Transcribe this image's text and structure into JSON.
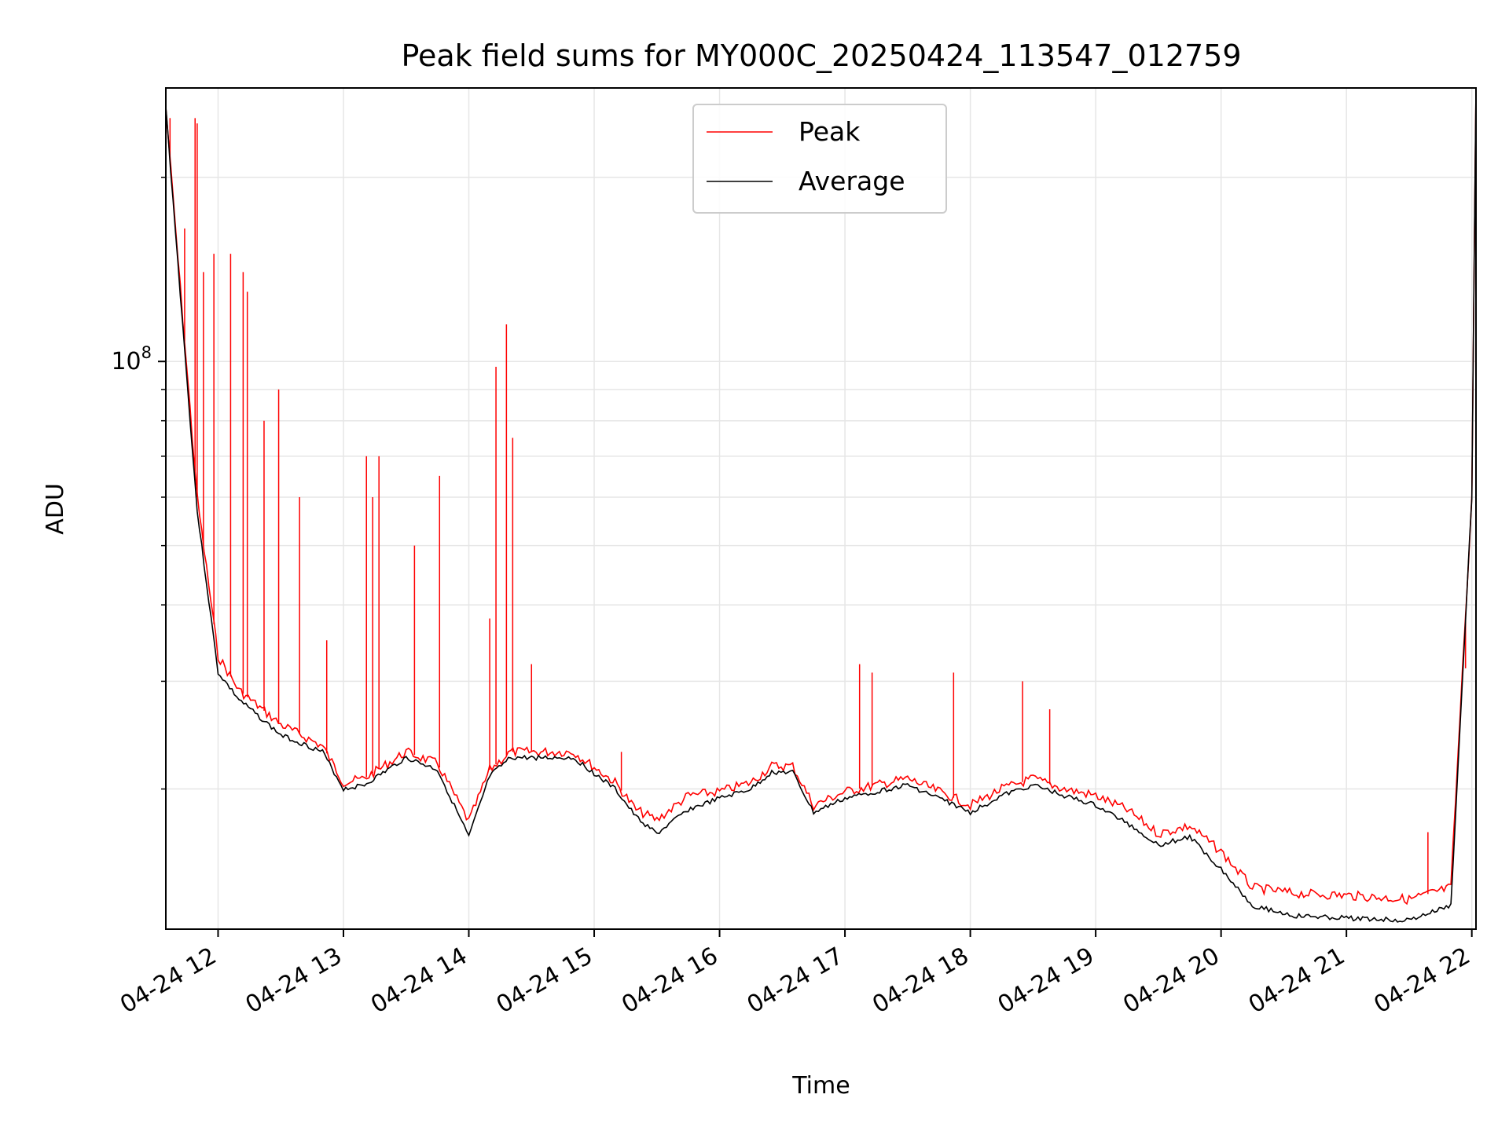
{
  "chart_data": {
    "type": "line",
    "title": "Peak field sums for MY000C_20250424_113547_012759",
    "xlabel": "Time",
    "ylabel": "ADU",
    "xscale": "time",
    "yscale": "log",
    "xlim": [
      "2025-04-24T11:35",
      "2025-04-24T22:02"
    ],
    "ylim": [
      11800000,
      280000000
    ],
    "x_tick_labels": [
      "04-24 12",
      "04-24 13",
      "04-24 14",
      "04-24 15",
      "04-24 16",
      "04-24 17",
      "04-24 18",
      "04-24 19",
      "04-24 20",
      "04-24 21",
      "04-24 22"
    ],
    "x_tick_times": [
      "2025-04-24T12:00",
      "2025-04-24T13:00",
      "2025-04-24T14:00",
      "2025-04-24T15:00",
      "2025-04-24T16:00",
      "2025-04-24T17:00",
      "2025-04-24T18:00",
      "2025-04-24T19:00",
      "2025-04-24T20:00",
      "2025-04-24T21:00",
      "2025-04-24T22:00"
    ],
    "y_major_ticks": [
      {
        "value": 100000000,
        "base": "10",
        "exp": "8"
      }
    ],
    "y_minor_ticks": [
      20000000,
      30000000,
      40000000,
      50000000,
      60000000,
      70000000,
      80000000,
      90000000,
      200000000
    ],
    "grid": true,
    "legend_position": "upper center",
    "series": [
      {
        "name": "Peak",
        "color": "#ff0000",
        "baseline": {
          "x": [
            "2025-04-24T11:35",
            "2025-04-24T11:50",
            "2025-04-24T12:00",
            "2025-04-24T12:10",
            "2025-04-24T12:30",
            "2025-04-24T12:50",
            "2025-04-24T13:00",
            "2025-04-24T13:10",
            "2025-04-24T13:30",
            "2025-04-24T13:45",
            "2025-04-24T14:00",
            "2025-04-24T14:10",
            "2025-04-24T14:20",
            "2025-04-24T14:50",
            "2025-04-24T15:10",
            "2025-04-24T15:20",
            "2025-04-24T15:30",
            "2025-04-24T15:45",
            "2025-04-24T16:00",
            "2025-04-24T16:15",
            "2025-04-24T16:25",
            "2025-04-24T16:35",
            "2025-04-24T16:45",
            "2025-04-24T17:00",
            "2025-04-24T17:30",
            "2025-04-24T17:50",
            "2025-04-24T18:00",
            "2025-04-24T18:15",
            "2025-04-24T18:30",
            "2025-04-24T18:45",
            "2025-04-24T19:00",
            "2025-04-24T19:15",
            "2025-04-24T19:30",
            "2025-04-24T19:45",
            "2025-04-24T20:00",
            "2025-04-24T20:15",
            "2025-04-24T20:35",
            "2025-04-24T21:00",
            "2025-04-24T21:30",
            "2025-04-24T21:50",
            "2025-04-24T22:00",
            "2025-04-24T22:02"
          ],
          "y": [
            260000000,
            60000000,
            33000000,
            29000000,
            25500000,
            23500000,
            20500000,
            20800000,
            23000000,
            22000000,
            17700000,
            21500000,
            23000000,
            23000000,
            20500000,
            18500000,
            17800000,
            19500000,
            19800000,
            20500000,
            21800000,
            21800000,
            18800000,
            19800000,
            20800000,
            19500000,
            18800000,
            20000000,
            20800000,
            20000000,
            19500000,
            18500000,
            16900000,
            17400000,
            15800000,
            13800000,
            13500000,
            13400000,
            13200000,
            13800000,
            60000000,
            280000000
          ]
        },
        "spikes": {
          "x": [
            "2025-04-24T11:37",
            "2025-04-24T11:44",
            "2025-04-24T11:49",
            "2025-04-24T11:50",
            "2025-04-24T11:53",
            "2025-04-24T11:58",
            "2025-04-24T12:06",
            "2025-04-24T12:12",
            "2025-04-24T12:14",
            "2025-04-24T12:22",
            "2025-04-24T12:29",
            "2025-04-24T12:39",
            "2025-04-24T12:52",
            "2025-04-24T13:11",
            "2025-04-24T13:14",
            "2025-04-24T13:17",
            "2025-04-24T13:34",
            "2025-04-24T13:46",
            "2025-04-24T14:10",
            "2025-04-24T14:13",
            "2025-04-24T14:18",
            "2025-04-24T14:21",
            "2025-04-24T14:30",
            "2025-04-24T15:13",
            "2025-04-24T17:07",
            "2025-04-24T17:13",
            "2025-04-24T17:52",
            "2025-04-24T18:25",
            "2025-04-24T18:38",
            "2025-04-24T21:39",
            "2025-04-24T21:57"
          ],
          "y": [
            250000000,
            165000000,
            250000000,
            245000000,
            140000000,
            150000000,
            150000000,
            140000000,
            130000000,
            80000000,
            90000000,
            60000000,
            35000000,
            70000000,
            60000000,
            70000000,
            50000000,
            65000000,
            38000000,
            98000000,
            115000000,
            75000000,
            32000000,
            23000000,
            32000000,
            31000000,
            31000000,
            30000000,
            27000000,
            17000000,
            31500000
          ]
        }
      },
      {
        "name": "Average",
        "color": "#000000",
        "x": [
          "2025-04-24T11:35",
          "2025-04-24T11:50",
          "2025-04-24T12:00",
          "2025-04-24T12:10",
          "2025-04-24T12:30",
          "2025-04-24T12:50",
          "2025-04-24T13:00",
          "2025-04-24T13:10",
          "2025-04-24T13:30",
          "2025-04-24T13:45",
          "2025-04-24T14:00",
          "2025-04-24T14:10",
          "2025-04-24T14:20",
          "2025-04-24T14:50",
          "2025-04-24T15:10",
          "2025-04-24T15:20",
          "2025-04-24T15:30",
          "2025-04-24T15:45",
          "2025-04-24T16:00",
          "2025-04-24T16:15",
          "2025-04-24T16:25",
          "2025-04-24T16:35",
          "2025-04-24T16:45",
          "2025-04-24T17:00",
          "2025-04-24T17:30",
          "2025-04-24T17:50",
          "2025-04-24T18:00",
          "2025-04-24T18:15",
          "2025-04-24T18:30",
          "2025-04-24T18:45",
          "2025-04-24T19:00",
          "2025-04-24T19:15",
          "2025-04-24T19:30",
          "2025-04-24T19:45",
          "2025-04-24T20:00",
          "2025-04-24T20:15",
          "2025-04-24T20:35",
          "2025-04-24T21:00",
          "2025-04-24T21:30",
          "2025-04-24T21:50",
          "2025-04-24T22:00",
          "2025-04-24T22:02"
        ],
        "y": [
          260000000,
          57000000,
          31000000,
          28000000,
          24500000,
          23000000,
          20000000,
          20300000,
          22500000,
          21500000,
          16700000,
          21000000,
          22500000,
          22500000,
          20000000,
          18000000,
          16900000,
          18500000,
          19300000,
          20000000,
          21300000,
          21300000,
          18300000,
          19300000,
          20300000,
          19000000,
          18300000,
          19500000,
          20300000,
          19500000,
          18800000,
          17600000,
          16200000,
          16700000,
          14800000,
          12900000,
          12400000,
          12300000,
          12200000,
          12900000,
          60000000,
          280000000
        ]
      }
    ]
  }
}
